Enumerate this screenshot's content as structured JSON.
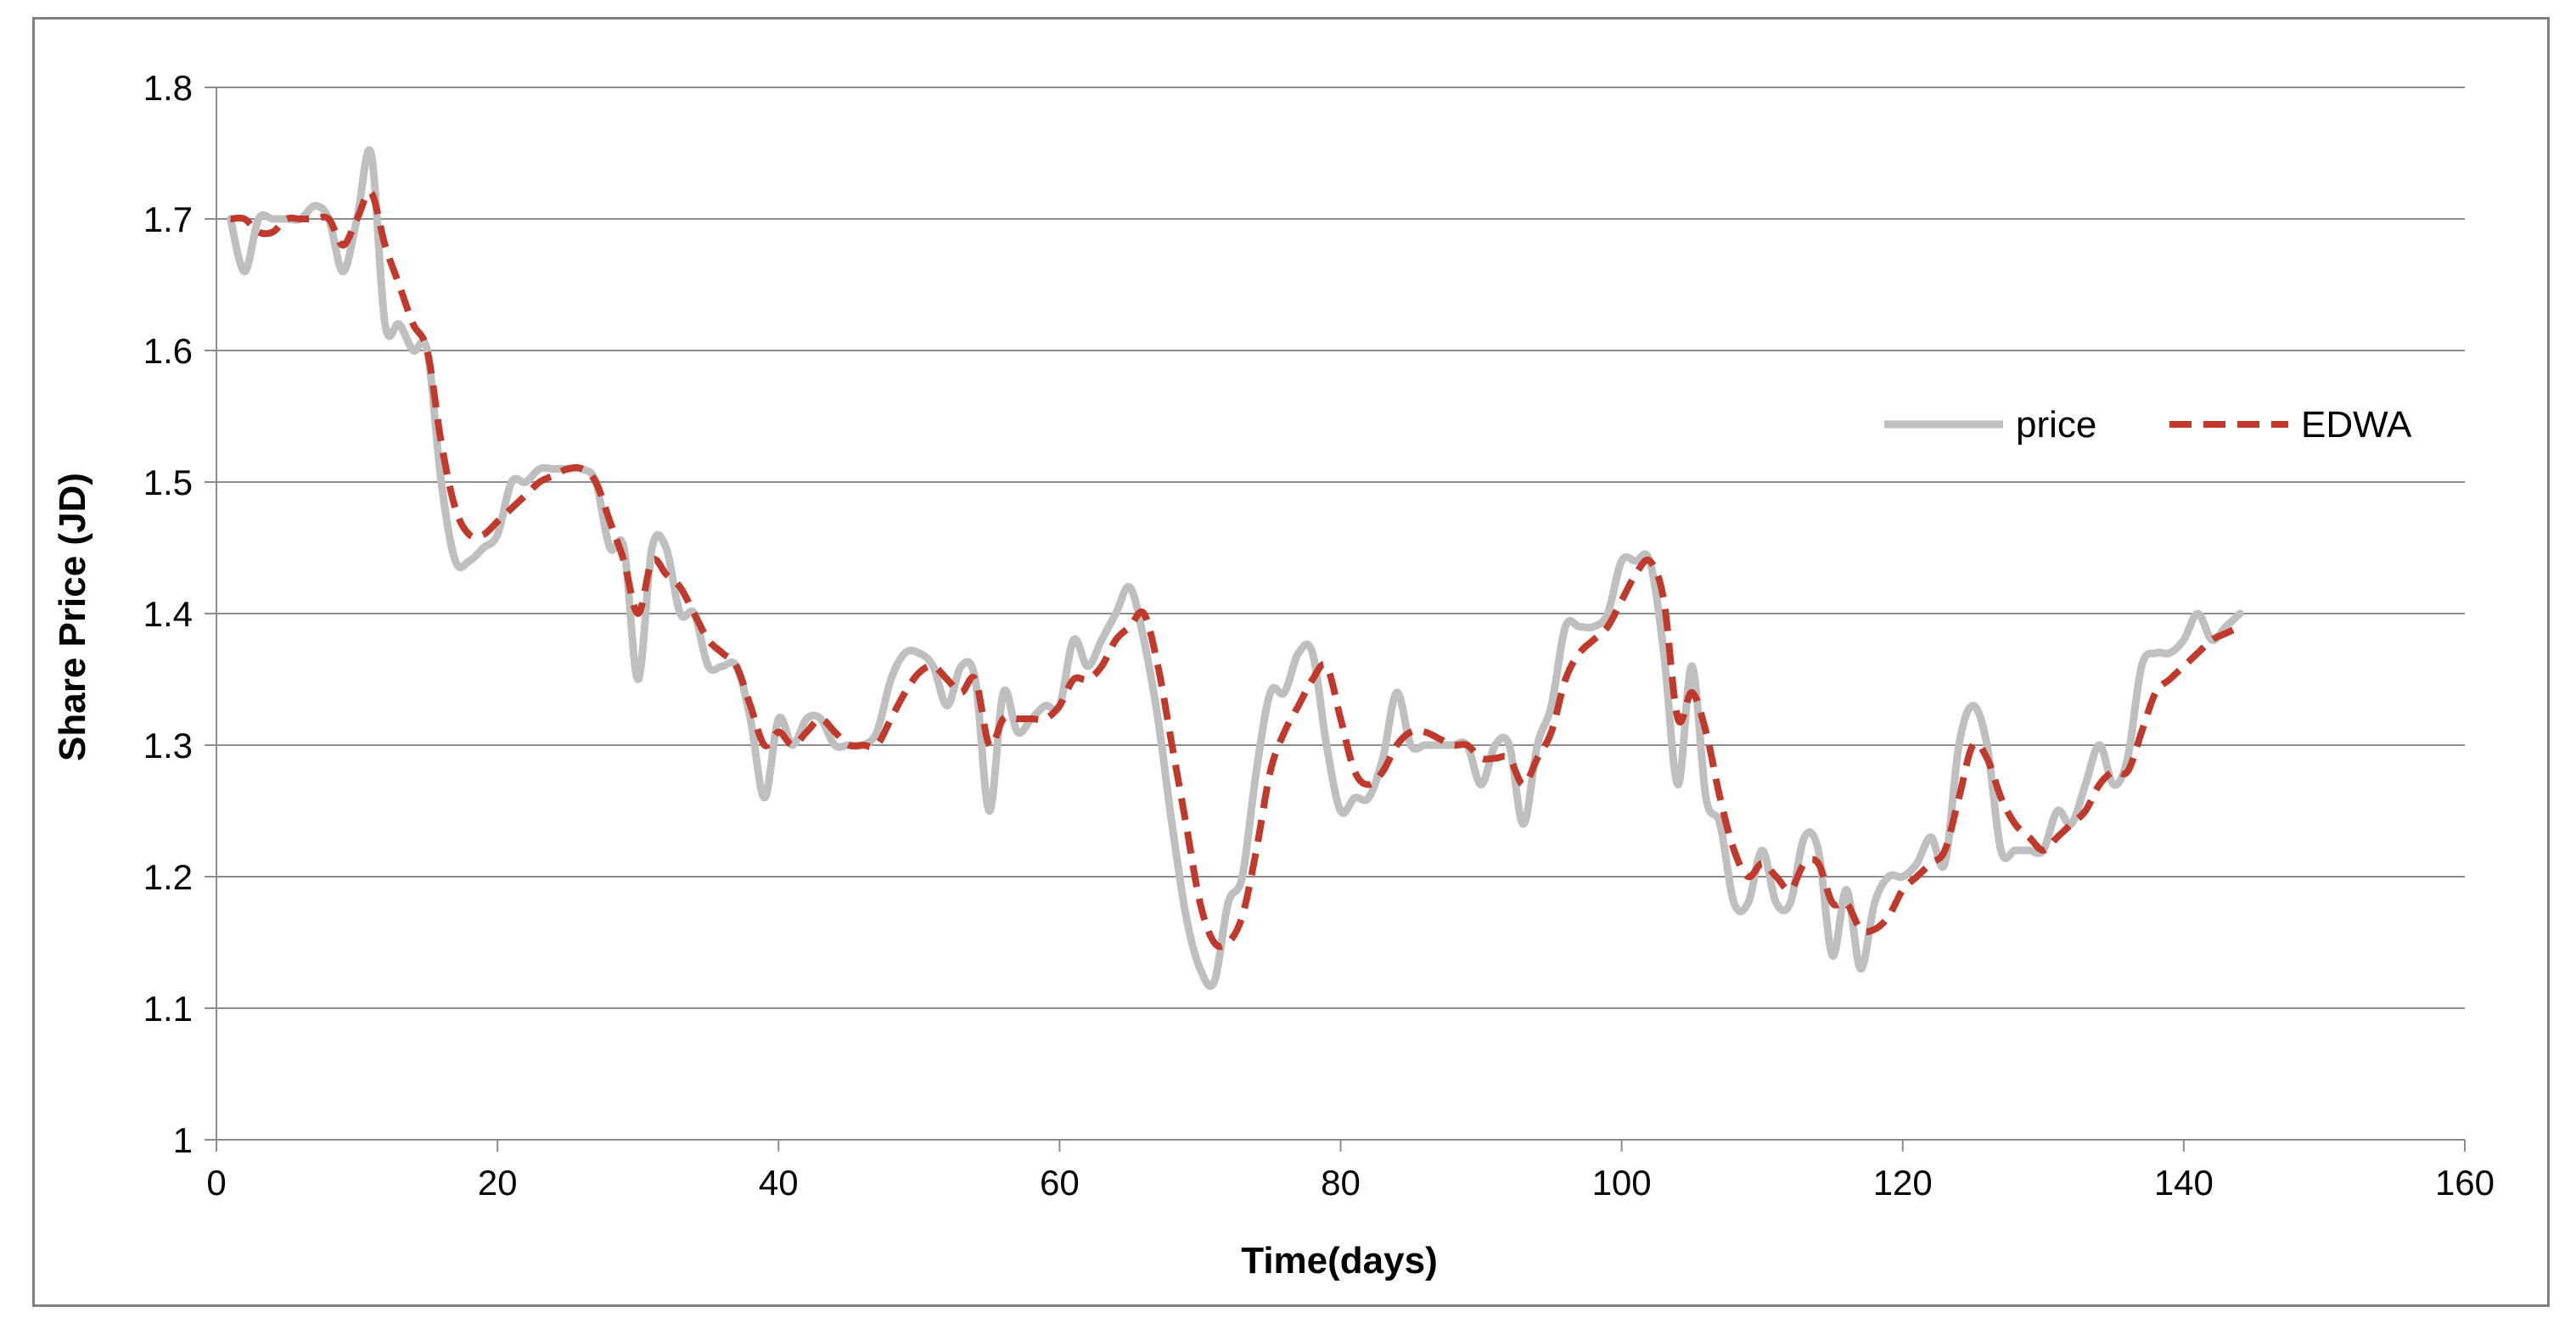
{
  "chart_data": {
    "type": "line",
    "title": "",
    "xlabel": "Time(days)",
    "ylabel": "Share Price (JD)",
    "xlim": [
      0,
      160
    ],
    "ylim": [
      1,
      1.8
    ],
    "x_ticks": [
      "0",
      "20",
      "40",
      "60",
      "80",
      "100",
      "120",
      "140",
      "160"
    ],
    "y_ticks": [
      "1",
      "1.1",
      "1.2",
      "1.3",
      "1.4",
      "1.5",
      "1.6",
      "1.7",
      "1.8"
    ],
    "grid": "horizontal",
    "legend": "right",
    "x": [
      1,
      2,
      3,
      4,
      5,
      6,
      7,
      8,
      9,
      10,
      11,
      12,
      13,
      14,
      15,
      16,
      17,
      18,
      19,
      20,
      21,
      22,
      23,
      24,
      25,
      26,
      27,
      28,
      29,
      30,
      31,
      32,
      33,
      34,
      35,
      36,
      37,
      38,
      39,
      40,
      41,
      42,
      43,
      44,
      45,
      46,
      47,
      48,
      49,
      50,
      51,
      52,
      53,
      54,
      55,
      56,
      57,
      58,
      59,
      60,
      61,
      62,
      63,
      64,
      65,
      66,
      67,
      68,
      69,
      70,
      71,
      72,
      73,
      74,
      75,
      76,
      77,
      78,
      79,
      80,
      81,
      82,
      83,
      84,
      85,
      86,
      87,
      88,
      89,
      90,
      91,
      92,
      93,
      94,
      95,
      96,
      97,
      98,
      99,
      100,
      101,
      102,
      103,
      104,
      105,
      106,
      107,
      108,
      109,
      110,
      111,
      112,
      113,
      114,
      115,
      116,
      117,
      118,
      119,
      120,
      121,
      122,
      123,
      124,
      125,
      126,
      127,
      128,
      129,
      130,
      131,
      132,
      133,
      134,
      135,
      136,
      137,
      138,
      139,
      140,
      141,
      142,
      143,
      144
    ],
    "series": [
      {
        "name": "price",
        "color": "#bfbfbf",
        "dash": "solid",
        "values": [
          1.7,
          1.66,
          1.7,
          1.7,
          1.7,
          1.7,
          1.71,
          1.7,
          1.66,
          1.7,
          1.75,
          1.62,
          1.62,
          1.6,
          1.6,
          1.5,
          1.44,
          1.44,
          1.45,
          1.46,
          1.5,
          1.5,
          1.51,
          1.51,
          1.51,
          1.51,
          1.5,
          1.45,
          1.45,
          1.35,
          1.45,
          1.45,
          1.4,
          1.4,
          1.36,
          1.36,
          1.36,
          1.32,
          1.26,
          1.32,
          1.3,
          1.32,
          1.32,
          1.3,
          1.3,
          1.3,
          1.31,
          1.35,
          1.37,
          1.37,
          1.36,
          1.33,
          1.36,
          1.35,
          1.25,
          1.34,
          1.31,
          1.32,
          1.33,
          1.33,
          1.38,
          1.36,
          1.38,
          1.4,
          1.42,
          1.38,
          1.32,
          1.24,
          1.17,
          1.13,
          1.12,
          1.18,
          1.2,
          1.28,
          1.34,
          1.34,
          1.37,
          1.37,
          1.3,
          1.25,
          1.26,
          1.26,
          1.29,
          1.34,
          1.3,
          1.3,
          1.3,
          1.3,
          1.3,
          1.27,
          1.3,
          1.3,
          1.24,
          1.3,
          1.33,
          1.39,
          1.39,
          1.39,
          1.4,
          1.44,
          1.44,
          1.44,
          1.37,
          1.27,
          1.36,
          1.26,
          1.24,
          1.18,
          1.18,
          1.22,
          1.18,
          1.18,
          1.23,
          1.22,
          1.14,
          1.19,
          1.13,
          1.18,
          1.2,
          1.2,
          1.21,
          1.23,
          1.21,
          1.3,
          1.33,
          1.3,
          1.22,
          1.22,
          1.22,
          1.22,
          1.25,
          1.24,
          1.27,
          1.3,
          1.27,
          1.29,
          1.36,
          1.37,
          1.37,
          1.38,
          1.4,
          1.38,
          1.39,
          1.4
        ]
      },
      {
        "name": "EDWA",
        "color": "#c0392b",
        "dash": "dashed",
        "values": [
          1.7,
          1.7,
          1.69,
          1.69,
          1.7,
          1.7,
          1.7,
          1.7,
          1.68,
          1.7,
          1.72,
          1.68,
          1.65,
          1.62,
          1.6,
          1.53,
          1.48,
          1.46,
          1.46,
          1.47,
          1.48,
          1.49,
          1.5,
          1.505,
          1.51,
          1.51,
          1.5,
          1.47,
          1.44,
          1.4,
          1.44,
          1.43,
          1.42,
          1.4,
          1.38,
          1.37,
          1.36,
          1.33,
          1.3,
          1.31,
          1.3,
          1.31,
          1.32,
          1.31,
          1.3,
          1.3,
          1.3,
          1.32,
          1.34,
          1.355,
          1.36,
          1.35,
          1.34,
          1.35,
          1.3,
          1.32,
          1.32,
          1.32,
          1.32,
          1.33,
          1.35,
          1.35,
          1.36,
          1.38,
          1.39,
          1.4,
          1.36,
          1.3,
          1.24,
          1.18,
          1.15,
          1.15,
          1.17,
          1.22,
          1.28,
          1.31,
          1.33,
          1.35,
          1.36,
          1.32,
          1.28,
          1.27,
          1.28,
          1.3,
          1.31,
          1.31,
          1.305,
          1.3,
          1.3,
          1.29,
          1.29,
          1.29,
          1.27,
          1.29,
          1.31,
          1.35,
          1.37,
          1.38,
          1.39,
          1.41,
          1.43,
          1.44,
          1.41,
          1.32,
          1.34,
          1.31,
          1.26,
          1.22,
          1.2,
          1.21,
          1.2,
          1.19,
          1.21,
          1.21,
          1.18,
          1.18,
          1.16,
          1.16,
          1.17,
          1.19,
          1.2,
          1.21,
          1.22,
          1.26,
          1.3,
          1.29,
          1.26,
          1.24,
          1.23,
          1.22,
          1.23,
          1.24,
          1.25,
          1.27,
          1.28,
          1.28,
          1.31,
          1.34,
          1.35,
          1.36,
          1.37,
          1.38,
          1.385,
          1.39
        ]
      }
    ]
  }
}
